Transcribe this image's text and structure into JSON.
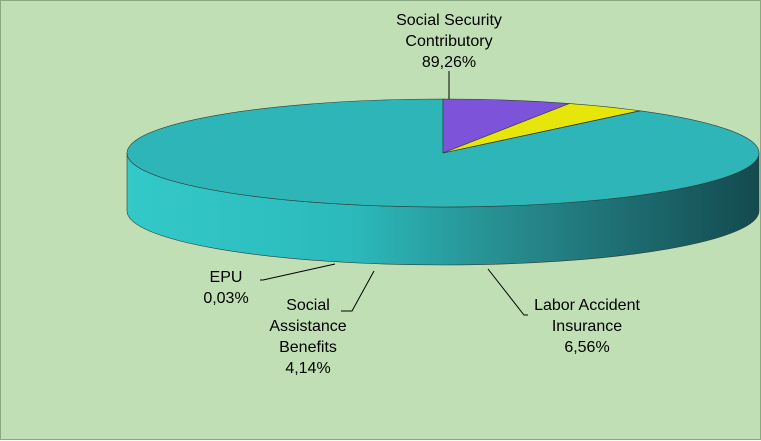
{
  "chart_data": {
    "type": "pie",
    "variant": "3d",
    "slices": [
      {
        "label_lines": [
          "Social Security",
          "Contributory"
        ],
        "value_label": "89,26%",
        "value": 89.26,
        "color": "#2db5b7"
      },
      {
        "label_lines": [
          "Labor Accident",
          "Insurance"
        ],
        "value_label": "6,56%",
        "value": 6.56,
        "color": "#7c53d9"
      },
      {
        "label_lines": [
          "Social",
          "Assistance",
          "Benefits"
        ],
        "value_label": "4,14%",
        "value": 4.14,
        "color": "#e6e60a"
      },
      {
        "label_lines": [
          "EPU"
        ],
        "value_label": "0,03%",
        "value": 0.03,
        "color": "#2a2a8a"
      }
    ],
    "legend": "none",
    "background": "#c1dfb5"
  }
}
